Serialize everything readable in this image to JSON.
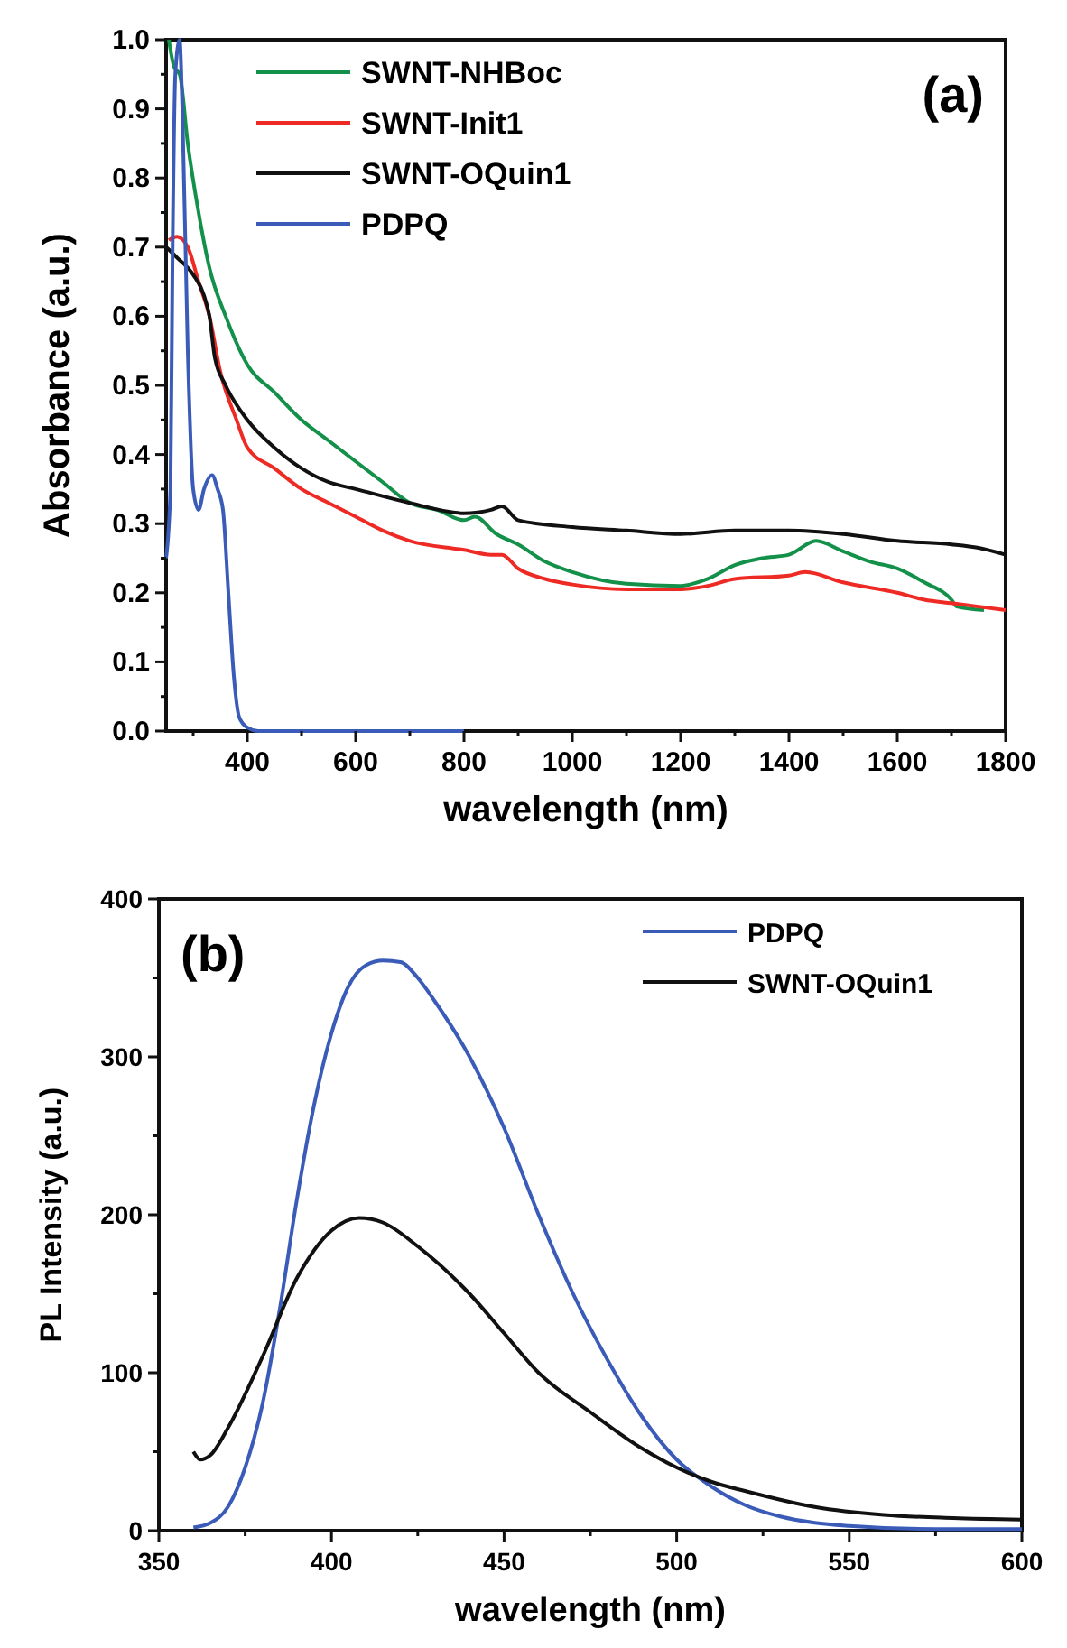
{
  "chart_data": [
    {
      "type": "line",
      "annotations": [
        "(a)"
      ],
      "xlabel": "wavelength (nm)",
      "ylabel": "Absorbance (a.u.)",
      "xlim": [
        250,
        1800
      ],
      "ylim": [
        0,
        1.0
      ],
      "xticks": [
        {
          "value": 300,
          "label": null
        },
        400,
        {
          "value": 500,
          "label": null
        },
        600,
        {
          "value": 700,
          "label": null
        },
        800,
        {
          "value": 900,
          "label": null
        },
        1000,
        {
          "value": 1100,
          "label": null
        },
        1200,
        {
          "value": 1300,
          "label": null
        },
        1400,
        {
          "value": 1500,
          "label": null
        },
        1600,
        {
          "value": 1700,
          "label": null
        },
        1800
      ],
      "yticks": [
        {
          "value": 0,
          "label": "0.0"
        },
        {
          "value": 0.05,
          "label": null
        },
        0.1,
        {
          "value": 0.15,
          "label": null
        },
        0.2,
        {
          "value": 0.25,
          "label": null
        },
        0.3,
        {
          "value": 0.35,
          "label": null
        },
        0.4,
        {
          "value": 0.45,
          "label": null
        },
        0.5,
        {
          "value": 0.55,
          "label": null
        },
        0.6,
        {
          "value": 0.65,
          "label": null
        },
        0.7,
        {
          "value": 0.75,
          "label": null
        },
        0.8,
        {
          "value": 0.85,
          "label": null
        },
        0.9,
        {
          "value": 0.95,
          "label": null
        },
        {
          "value": 1.0,
          "label": "1.0"
        }
      ],
      "legend": "top",
      "grid": false,
      "marker": "none",
      "line_style": "solid",
      "series": [
        {
          "name": "SWNT-NHBoc",
          "color": "#13904a",
          "x": [
            255,
            265,
            275,
            290,
            310,
            330,
            360,
            400,
            450,
            500,
            550,
            600,
            650,
            700,
            750,
            800,
            820,
            860,
            900,
            950,
            1000,
            1100,
            1200,
            1250,
            1300,
            1350,
            1400,
            1450,
            1500,
            1550,
            1600,
            1650,
            1700,
            1710,
            1760
          ],
          "values": [
            1.0,
            0.96,
            0.95,
            0.85,
            0.75,
            0.67,
            0.6,
            0.53,
            0.49,
            0.45,
            0.42,
            0.39,
            0.36,
            0.33,
            0.32,
            0.305,
            0.31,
            0.285,
            0.27,
            0.245,
            0.23,
            0.213,
            0.21,
            0.22,
            0.24,
            0.25,
            0.255,
            0.275,
            0.26,
            0.245,
            0.235,
            0.215,
            0.19,
            0.18,
            0.175
          ]
        },
        {
          "name": "SWNT-Init1",
          "color": "#ee2a24",
          "x": [
            255,
            270,
            290,
            310,
            330,
            350,
            380,
            400,
            450,
            500,
            550,
            600,
            650,
            700,
            800,
            850,
            870,
            900,
            950,
            1000,
            1100,
            1200,
            1250,
            1300,
            1400,
            1430,
            1500,
            1600,
            1650,
            1700,
            1800
          ],
          "values": [
            0.71,
            0.715,
            0.7,
            0.65,
            0.6,
            0.52,
            0.45,
            0.41,
            0.38,
            0.35,
            0.33,
            0.31,
            0.29,
            0.275,
            0.262,
            0.255,
            0.255,
            0.235,
            0.22,
            0.212,
            0.205,
            0.205,
            0.21,
            0.22,
            0.225,
            0.23,
            0.215,
            0.2,
            0.19,
            0.185,
            0.175
          ]
        },
        {
          "name": "SWNT-OQuin1",
          "color": "#111111",
          "x": [
            250,
            270,
            300,
            320,
            330,
            340,
            360,
            400,
            450,
            500,
            550,
            600,
            700,
            800,
            850,
            870,
            900,
            1000,
            1100,
            1200,
            1300,
            1400,
            1500,
            1600,
            1700,
            1750,
            1800
          ],
          "values": [
            0.7,
            0.685,
            0.66,
            0.63,
            0.6,
            0.54,
            0.5,
            0.45,
            0.41,
            0.38,
            0.36,
            0.35,
            0.33,
            0.315,
            0.32,
            0.325,
            0.305,
            0.295,
            0.29,
            0.285,
            0.29,
            0.29,
            0.285,
            0.275,
            0.27,
            0.265,
            0.255
          ]
        },
        {
          "name": "PDPQ",
          "color": "#3a5bb8",
          "x": [
            250,
            258,
            262,
            267,
            275,
            280,
            290,
            300,
            310,
            320,
            335,
            345,
            355,
            365,
            375,
            385,
            400,
            420,
            800
          ],
          "values": [
            0.25,
            0.35,
            0.7,
            0.95,
            1.0,
            0.9,
            0.55,
            0.35,
            0.32,
            0.35,
            0.37,
            0.35,
            0.32,
            0.2,
            0.08,
            0.02,
            0.005,
            0,
            0
          ]
        }
      ]
    },
    {
      "type": "line",
      "annotations": [
        "(b)"
      ],
      "xlabel": "wavelength (nm)",
      "ylabel": "PL Intensity (a.u.)",
      "xlim": [
        350,
        600
      ],
      "ylim": [
        0,
        400
      ],
      "xticks": [
        350,
        {
          "value": 375,
          "label": null
        },
        400,
        {
          "value": 425,
          "label": null
        },
        450,
        {
          "value": 475,
          "label": null
        },
        500,
        {
          "value": 525,
          "label": null
        },
        550,
        {
          "value": 575,
          "label": null
        },
        600
      ],
      "yticks": [
        0,
        {
          "value": 50,
          "label": null
        },
        100,
        {
          "value": 150,
          "label": null
        },
        200,
        {
          "value": 250,
          "label": null
        },
        300,
        {
          "value": 350,
          "label": null
        },
        400
      ],
      "legend": "top right",
      "grid": false,
      "marker": "none",
      "line_style": "solid",
      "series": [
        {
          "name": "PDPQ",
          "color": "#3a5bb8",
          "x": [
            360,
            365,
            370,
            375,
            380,
            385,
            390,
            395,
            400,
            405,
            410,
            415,
            420,
            425,
            430,
            440,
            450,
            460,
            470,
            480,
            490,
            500,
            510,
            520,
            530,
            540,
            550,
            575,
            600
          ],
          "values": [
            2,
            5,
            15,
            40,
            80,
            140,
            210,
            270,
            315,
            345,
            358,
            361,
            360,
            350,
            335,
            300,
            255,
            200,
            150,
            108,
            72,
            45,
            28,
            16,
            9,
            5,
            3,
            1,
            1
          ]
        },
        {
          "name": "SWNT-OQuin1",
          "color": "#111111",
          "x": [
            360,
            362,
            365,
            370,
            380,
            390,
            400,
            408,
            415,
            425,
            440,
            450,
            460,
            475,
            490,
            500,
            510,
            520,
            540,
            560,
            580,
            600
          ],
          "values": [
            50,
            45,
            48,
            65,
            110,
            160,
            190,
            198,
            195,
            180,
            150,
            125,
            100,
            75,
            52,
            40,
            31,
            25,
            15,
            10,
            8,
            7
          ]
        }
      ]
    }
  ]
}
